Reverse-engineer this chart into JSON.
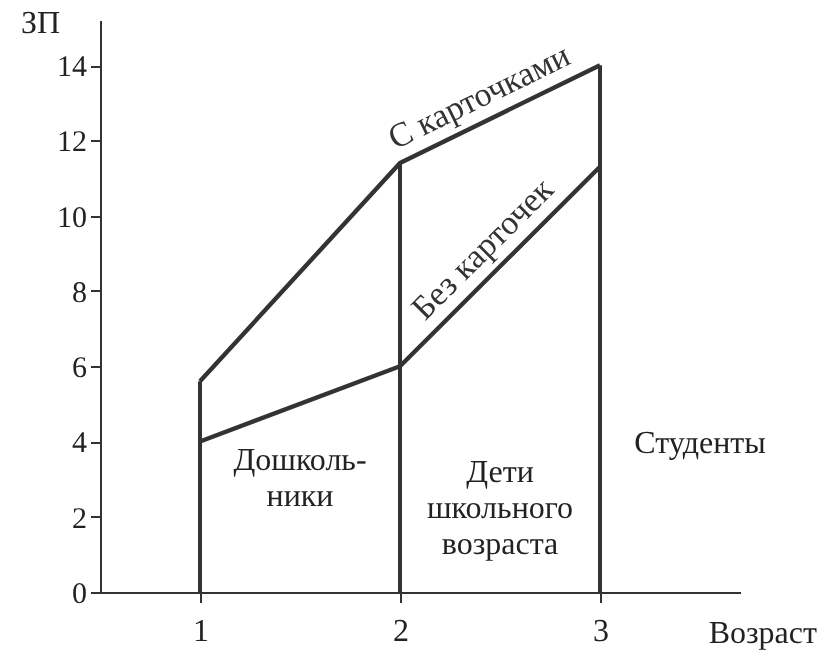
{
  "chart_data": {
    "type": "line",
    "xlabel": "Возраст",
    "ylabel": "ЗП",
    "x": [
      1,
      2,
      3
    ],
    "series": [
      {
        "name": "С карточками",
        "color": "#333333",
        "values": [
          5.6,
          11.4,
          14
        ]
      },
      {
        "name": "Без карточек",
        "color": "#333333",
        "values": [
          4,
          6,
          11.3
        ]
      }
    ],
    "xlim": [
      0.5,
      3.7
    ],
    "ylim": [
      0,
      15.2
    ],
    "xticks": [
      1,
      2,
      3
    ],
    "yticks": [
      0,
      2,
      4,
      6,
      8,
      10,
      12,
      14
    ],
    "ref_lines": [
      {
        "axis": "x",
        "value": 1
      },
      {
        "axis": "x",
        "value": 2
      },
      {
        "axis": "x",
        "value": 3
      }
    ],
    "annotations": [
      "Дошколь-\nники",
      "Дети\nшкольного\nвозраста",
      "Студенты"
    ],
    "marker": "none",
    "line_style": "solid"
  }
}
